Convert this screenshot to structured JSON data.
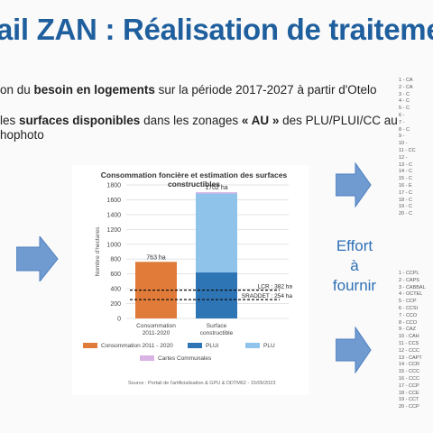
{
  "header": {
    "title": "ail ZAN : Réalisation de traitemen"
  },
  "bullets": [
    {
      "pre": "on du ",
      "bold": "besoin en logements",
      "post": " sur la période 2017-2027 à partir d'Otelo"
    },
    {
      "pre": "les ",
      "bold": "surfaces disponibles",
      "mid": " dans les zonages ",
      "bold2": "« AU »",
      "post": " des PLU/PLUI/CC au"
    },
    {
      "line": "hophoto"
    }
  ],
  "effort": {
    "line1": "Effort",
    "line2": "à",
    "line3": "fournir"
  },
  "side_list_top": [
    "1 - CA",
    "2 - CA",
    "3 - C",
    "4 - C",
    "5 - C",
    "6 - ",
    "7 - ",
    "8 - C",
    "9 - ",
    "10 - ",
    "11 - CC",
    "12 - ",
    "13 - C",
    "14 - C",
    "15 - C",
    "16 - E",
    "17 - C",
    "18 - C",
    "19 - C",
    "20 - C"
  ],
  "side_list_bottom": [
    "1 - CCPL",
    "2 - CAPS",
    "3 - CABBAL",
    "4 - OCTEL",
    "5 - CCP",
    "6 - CCSI",
    "7 - CCO",
    "8 - CCO",
    "9 - CAZ",
    "10 - CAH",
    "11 - CCS",
    "12 - CCC",
    "13 - CAPT",
    "14 - CCR",
    "15 - CCC",
    "16 - CCC",
    "17 - CCP",
    "18 - CCE",
    "19 - CCT",
    "20 - CCP"
  ],
  "chart_data": {
    "type": "bar",
    "title": "Consommation foncière et estimation des surfaces constructibles",
    "ylabel": "Nombre d'hectares",
    "ylim": [
      0,
      1800
    ],
    "yticks": [
      0,
      200,
      400,
      600,
      800,
      1000,
      1200,
      1400,
      1600,
      1800
    ],
    "categories": [
      "Consommation 2011-2020",
      "Surface constructible"
    ],
    "category_lines": [
      [
        "Consommation",
        "2011-2020"
      ],
      [
        "Surface",
        "constructible"
      ]
    ],
    "series": [
      {
        "name": "Consommation 2011 - 2020",
        "color": "#e07b39",
        "values": [
          763,
          0
        ]
      },
      {
        "name": "PLUi",
        "color": "#2e75b6",
        "values": [
          0,
          620
        ]
      },
      {
        "name": "PLU",
        "color": "#8fc3ea",
        "values": [
          0,
          1065
        ]
      },
      {
        "name": "Cartes Communales",
        "color": "#d9b3e6",
        "values": [
          0,
          17
        ]
      }
    ],
    "data_labels": [
      "763 ha",
      "1702 ha"
    ],
    "reference_lines": [
      {
        "label": "LCR : 382 ha",
        "value": 382
      },
      {
        "label": "SRADDET : 254 ha",
        "value": 254
      }
    ],
    "source": "Source : Portail de l'artificialisation & GPU & DDTM62 - 15/09/2023"
  }
}
